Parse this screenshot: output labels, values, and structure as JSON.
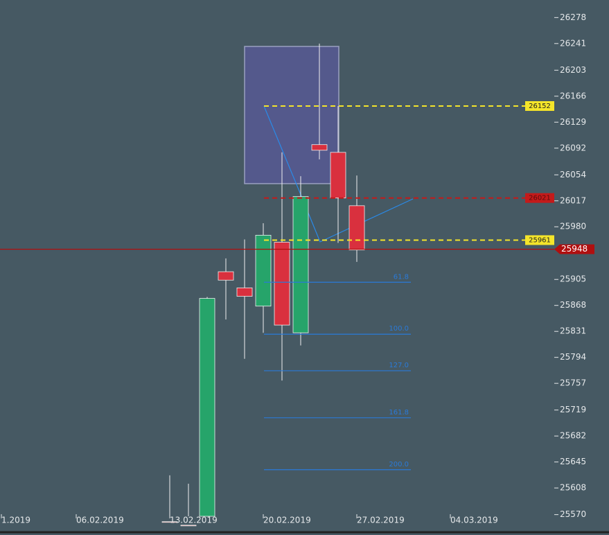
{
  "chart_data": {
    "type": "candlestick",
    "categories": [
      "1.2019",
      null,
      null,
      null,
      "06.02.2019",
      null,
      null,
      null,
      null,
      "13.02.2019",
      null,
      null,
      null,
      null,
      "20.02.2019",
      null,
      null,
      null,
      null,
      "27.02.2019",
      null,
      null,
      null,
      null,
      "04.03.2019"
    ],
    "open": [
      null,
      null,
      null,
      null,
      null,
      null,
      null,
      null,
      null,
      25560,
      25555,
      25560,
      25916,
      25893,
      25867,
      25958,
      25829,
      26097,
      26086,
      26010,
      null,
      null,
      null,
      null,
      null
    ],
    "high": [
      null,
      null,
      null,
      null,
      null,
      null,
      null,
      null,
      null,
      25626,
      25614,
      25880,
      25935,
      25962,
      25985,
      26086,
      26052,
      26241,
      26152,
      26053,
      null,
      null,
      null,
      null,
      null
    ],
    "low": [
      null,
      null,
      null,
      null,
      null,
      null,
      null,
      null,
      null,
      25540,
      25540,
      25540,
      25848,
      25792,
      25829,
      25761,
      25811,
      26076,
      25957,
      25930,
      null,
      null,
      null,
      null,
      null
    ],
    "close": [
      null,
      null,
      null,
      null,
      null,
      null,
      null,
      null,
      null,
      25550,
      25548,
      25878,
      25904,
      25881,
      25968,
      25840,
      26023,
      26089,
      26021,
      25947,
      null,
      null,
      null,
      null,
      null
    ],
    "up_color": "#26a46a",
    "down_color": "#d9303e",
    "ylim": [
      25541,
      26303
    ],
    "yticks": [
      25570,
      25608,
      25645,
      25682,
      25719,
      25757,
      25794,
      25831,
      25868,
      25905,
      25980,
      26017,
      26054,
      26092,
      26129,
      26166,
      26203,
      26241,
      26278
    ],
    "price_lines": [
      {
        "value": 26152,
        "color": "#f5e52a"
      },
      {
        "value": 26021,
        "color": "#c41a1a"
      },
      {
        "value": 25961,
        "color": "#f5e52a"
      }
    ],
    "last_price": {
      "value": 25948,
      "color": "#b00f0f"
    },
    "fib_levels": [
      {
        "value": 25901,
        "label": "61.8"
      },
      {
        "value": 25827,
        "label": "100.0"
      },
      {
        "value": 25775,
        "label": "127.0"
      },
      {
        "value": 25708,
        "label": "161.8"
      },
      {
        "value": 25634,
        "label": "200.0"
      }
    ],
    "fib_color": "#2a7ad8"
  }
}
